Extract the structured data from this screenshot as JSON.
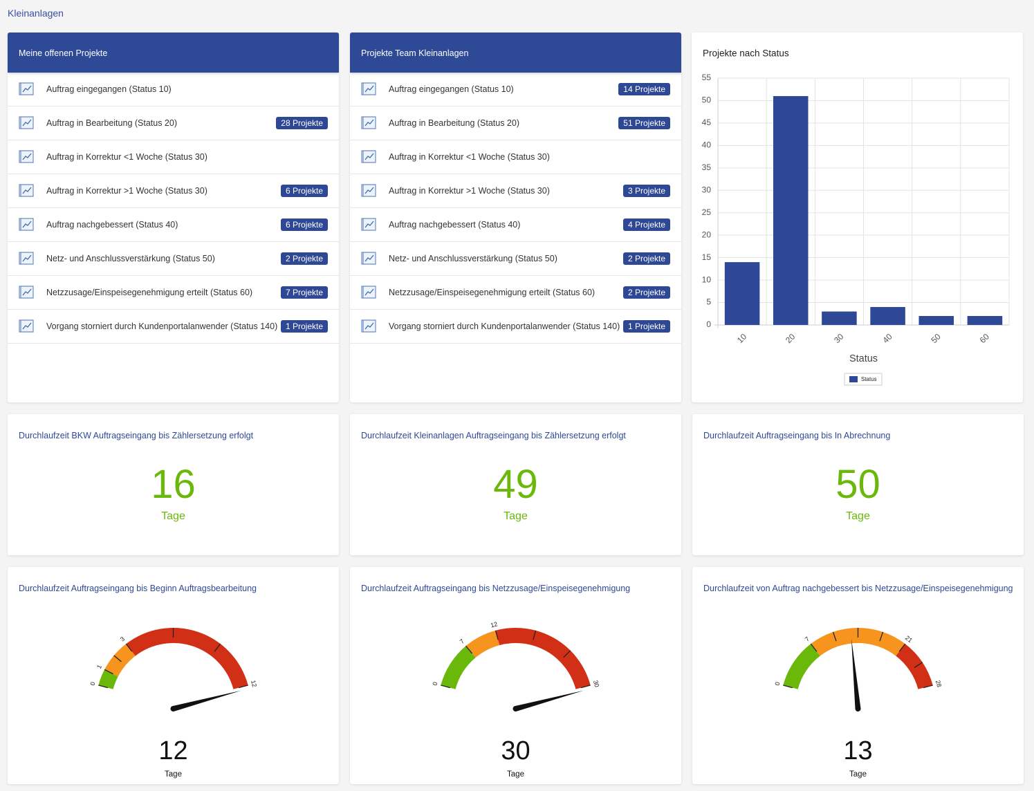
{
  "header": {
    "title": "Kleinanlagen"
  },
  "lists": [
    {
      "title": "Meine offenen Projekte",
      "items": [
        {
          "label": "Auftrag eingegangen (Status 10)"
        },
        {
          "label": "Auftrag in Bearbeitung (Status 20)",
          "badge": "28 Projekte"
        },
        {
          "label": "Auftrag in Korrektur <1 Woche (Status 30)"
        },
        {
          "label": "Auftrag in Korrektur >1 Woche (Status 30)",
          "badge": "6 Projekte"
        },
        {
          "label": "Auftrag nachgebessert (Status 40)",
          "badge": "6 Projekte"
        },
        {
          "label": "Netz- und Anschlussverstärkung (Status 50)",
          "badge": "2 Projekte"
        },
        {
          "label": "Netzzusage/Einspeisegenehmigung erteilt (Status 60)",
          "badge": "7 Projekte"
        },
        {
          "label": "Vorgang storniert durch Kundenportalanwender (Status 140)",
          "badge": "1 Projekte"
        }
      ]
    },
    {
      "title": "Projekte Team Kleinanlagen",
      "items": [
        {
          "label": "Auftrag eingegangen (Status 10)",
          "badge": "14 Projekte"
        },
        {
          "label": "Auftrag in Bearbeitung (Status 20)",
          "badge": "51 Projekte"
        },
        {
          "label": "Auftrag in Korrektur <1 Woche (Status 30)"
        },
        {
          "label": "Auftrag in Korrektur >1 Woche (Status 30)",
          "badge": "3 Projekte"
        },
        {
          "label": "Auftrag nachgebessert (Status 40)",
          "badge": "4 Projekte"
        },
        {
          "label": "Netz- und Anschlussverstärkung (Status 50)",
          "badge": "2 Projekte"
        },
        {
          "label": "Netzzusage/Einspeisegenehmigung erteilt (Status 60)",
          "badge": "2 Projekte"
        },
        {
          "label": "Vorgang storniert durch Kundenportalanwender (Status 140)",
          "badge": "1 Projekte"
        }
      ]
    }
  ],
  "kpis": [
    {
      "title": "Durchlaufzeit BKW Auftragseingang bis Zählersetzung erfolgt",
      "value": 16,
      "unit": "Tage"
    },
    {
      "title": "Durchlaufzeit Kleinanlagen Auftragseingang bis Zählersetzung erfolgt",
      "value": 49,
      "unit": "Tage"
    },
    {
      "title": "Durchlaufzeit Auftragseingang bis In Abrechnung",
      "value": 50,
      "unit": "Tage"
    }
  ],
  "chart_data": [
    {
      "type": "bar",
      "title": "Projekte nach Status",
      "categories": [
        "10",
        "20",
        "30",
        "40",
        "50",
        "60"
      ],
      "series": [
        {
          "name": "Status",
          "color": "#2e4895",
          "values": [
            14,
            51,
            3,
            4,
            2,
            2
          ]
        }
      ],
      "xlabel": "Status",
      "ylim": [
        0,
        55
      ],
      "yticks": [
        0,
        5,
        10,
        15,
        20,
        25,
        30,
        35,
        40,
        45,
        50,
        55
      ],
      "grid": true,
      "legend": "bottom"
    },
    {
      "type": "gauge",
      "title": "Durchlaufzeit Auftragseingang bis Beginn Auftragsbearbeitung",
      "value": 12,
      "unit": "Tage",
      "ylim": [
        0,
        12
      ],
      "yticks": [
        0,
        1,
        3,
        12
      ],
      "minor_ticks": [
        2,
        6,
        9
      ],
      "bands": [
        {
          "from": 0,
          "to": 1,
          "color": "#6ab80a"
        },
        {
          "from": 1,
          "to": 3,
          "color": "#f7941d"
        },
        {
          "from": 3,
          "to": 12,
          "color": "#d23016"
        }
      ]
    },
    {
      "type": "gauge",
      "title": "Durchlaufzeit Auftragseingang bis Netzzusage/Einspeisegenehmigung",
      "value": 30,
      "unit": "Tage",
      "ylim": [
        0,
        30
      ],
      "yticks": [
        0,
        7,
        12,
        30
      ],
      "minor_ticks": [
        18,
        24
      ],
      "bands": [
        {
          "from": 0,
          "to": 7,
          "color": "#6ab80a"
        },
        {
          "from": 7,
          "to": 12,
          "color": "#f7941d"
        },
        {
          "from": 12,
          "to": 30,
          "color": "#d23016"
        }
      ]
    },
    {
      "type": "gauge",
      "title": "Durchlaufzeit von Auftrag nachgebessert bis Netzzusage/Einspeisegenehmigung",
      "value": 13,
      "unit": "Tage",
      "ylim": [
        0,
        28
      ],
      "yticks": [
        0,
        7,
        21,
        28
      ],
      "minor_ticks": [
        10.5,
        14,
        17.5,
        24.5
      ],
      "bands": [
        {
          "from": 0,
          "to": 7,
          "color": "#6ab80a"
        },
        {
          "from": 7,
          "to": 21,
          "color": "#f7941d"
        },
        {
          "from": 21,
          "to": 28,
          "color": "#d23016"
        }
      ]
    }
  ]
}
